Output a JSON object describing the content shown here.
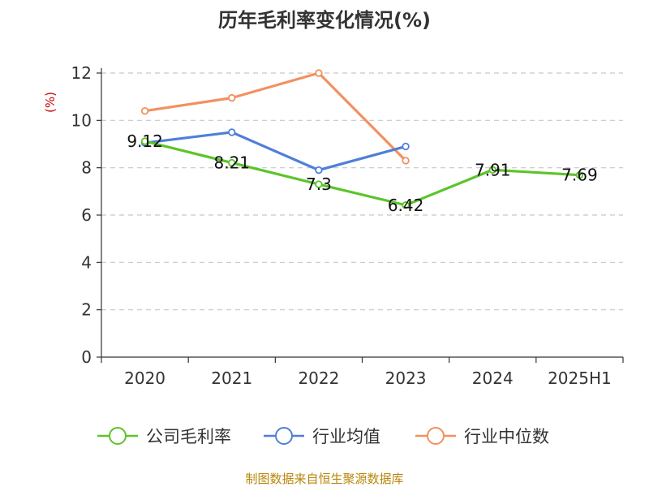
{
  "chart_data": {
    "type": "line",
    "title": "历年毛利率变化情况(%)",
    "ylabel": "(%)",
    "categories": [
      "2020",
      "2021",
      "2022",
      "2023",
      "2024",
      "2025H1"
    ],
    "ylim": [
      0,
      12
    ],
    "yticks": [
      0,
      2,
      4,
      6,
      8,
      10,
      12
    ],
    "grid": true,
    "legend_position": "bottom",
    "series": [
      {
        "name": "公司毛利率",
        "color": "#5cc42b",
        "values": [
          9.12,
          8.21,
          7.3,
          6.42,
          7.91,
          7.69
        ],
        "labels": [
          "9.12",
          "8.21",
          "7.3",
          "6.42",
          "7.91",
          "7.69"
        ]
      },
      {
        "name": "行业均值",
        "color": "#4f7fd8",
        "values": [
          9.05,
          9.5,
          7.9,
          8.9,
          null,
          null
        ]
      },
      {
        "name": "行业中位数",
        "color": "#f39060",
        "values": [
          10.4,
          10.95,
          12.0,
          8.3,
          null,
          null
        ]
      }
    ]
  },
  "footer": {
    "source": "制图数据来自恒生聚源数据库"
  }
}
